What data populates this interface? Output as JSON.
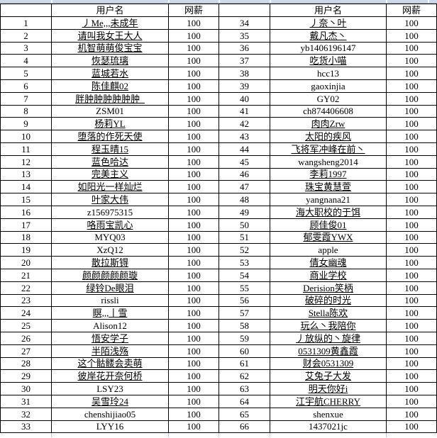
{
  "header": {
    "row_number_label": "",
    "username_label": "用户名",
    "salary_label": "网薪"
  },
  "rows_left": [
    {
      "no": "1",
      "name": "丿Me,,,未成年",
      "salary": "100"
    },
    {
      "no": "2",
      "name": "请叫我女王大人",
      "salary": "100"
    },
    {
      "no": "3",
      "name": "机智萌萌俊宝宝",
      "salary": "100"
    },
    {
      "no": "4",
      "name": "恢瑟琉璃",
      "salary": "100"
    },
    {
      "no": "5",
      "name": "蓝城若水",
      "salary": "100"
    },
    {
      "no": "6",
      "name": "陈佳麒02",
      "salary": "100"
    },
    {
      "no": "7",
      "name": "胖肿肿肿肿肿肿_",
      "salary": "100"
    },
    {
      "no": "8",
      "name": "ZSM01",
      "salary": "100"
    },
    {
      "no": "9",
      "name": "杨莉YL",
      "salary": "100"
    },
    {
      "no": "10",
      "name": "堕落的作死天使",
      "salary": "100"
    },
    {
      "no": "11",
      "name": "程玉晴15",
      "salary": "100"
    },
    {
      "no": "12",
      "name": "蓝色哈达",
      "salary": "100"
    },
    {
      "no": "13",
      "name": "完美主义",
      "salary": "100"
    },
    {
      "no": "14",
      "name": "如阳光一样灿烂",
      "salary": "100"
    },
    {
      "no": "15",
      "name": "叶家大伟",
      "salary": "100"
    },
    {
      "no": "16",
      "name": "z156975315",
      "salary": "100"
    },
    {
      "no": "17",
      "name": "咯雨宝凯心",
      "salary": "100"
    },
    {
      "no": "18",
      "name": "MYQ03",
      "salary": "100"
    },
    {
      "no": "19",
      "name": "XzQ12",
      "salary": "100"
    },
    {
      "no": "20",
      "name": "散拉斯锝",
      "salary": "100"
    },
    {
      "no": "21",
      "name": "颜颜颜颜颜璇",
      "salary": "100"
    },
    {
      "no": "22",
      "name": "绿铃De眼泪",
      "salary": "100"
    },
    {
      "no": "23",
      "name": "rissli",
      "salary": "100"
    },
    {
      "no": "24",
      "name": "瞑,,,丨雪",
      "salary": "100"
    },
    {
      "no": "25",
      "name": "Alison12",
      "salary": "100"
    },
    {
      "no": "26",
      "name": "悟安学子",
      "salary": "100"
    },
    {
      "no": "27",
      "name": "半陌浅殇",
      "salary": "100"
    },
    {
      "no": "28",
      "name": "这个骷髅会卖萌",
      "salary": "100"
    },
    {
      "no": "29",
      "name": "彼岸花开奈何桥",
      "salary": "100"
    },
    {
      "no": "30",
      "name": "LSY23",
      "salary": "100"
    },
    {
      "no": "31",
      "name": "吴雪玲24",
      "salary": "100"
    },
    {
      "no": "32",
      "name": "chenshijiao05",
      "salary": "100"
    },
    {
      "no": "33",
      "name": "LYY16",
      "salary": "100"
    }
  ],
  "rows_right": [
    {
      "no": "34",
      "name": "丿奈丶叶",
      "salary": "100"
    },
    {
      "no": "35",
      "name": "戴凡杰丶",
      "salary": "100"
    },
    {
      "no": "36",
      "name": "yb1406196147",
      "salary": "100"
    },
    {
      "no": "37",
      "name": "吃货小喵",
      "salary": "100"
    },
    {
      "no": "38",
      "name": "hcc13",
      "salary": "100"
    },
    {
      "no": "39",
      "name": "gaoxinjia",
      "salary": "100"
    },
    {
      "no": "40",
      "name": "GY02",
      "salary": "100"
    },
    {
      "no": "41",
      "name": "ch874406608",
      "salary": "100"
    },
    {
      "no": "42",
      "name": "肉肉Zrw",
      "salary": "100"
    },
    {
      "no": "43",
      "name": "太阳的疾风",
      "salary": "100"
    },
    {
      "no": "44",
      "name": "飞将军冲峰在前丶",
      "salary": "100"
    },
    {
      "no": "45",
      "name": "wangsheng2014",
      "salary": "100"
    },
    {
      "no": "46",
      "name": "李莉1997",
      "salary": "100"
    },
    {
      "no": "47",
      "name": "珠宝黄慧萱",
      "salary": "100"
    },
    {
      "no": "48",
      "name": "yangnana21",
      "salary": "100"
    },
    {
      "no": "49",
      "name": "海大职校的于饵",
      "salary": "100"
    },
    {
      "no": "50",
      "name": "顾佳俊01",
      "salary": "100"
    },
    {
      "no": "51",
      "name": "郁雯霞YWX",
      "salary": "100"
    },
    {
      "no": "52",
      "name": "apple",
      "salary": "100"
    },
    {
      "no": "53",
      "name": "倩女幽魂",
      "salary": "100"
    },
    {
      "no": "54",
      "name": "商业学校",
      "salary": "100"
    },
    {
      "no": "55",
      "name": "Derision笑柄",
      "salary": "100"
    },
    {
      "no": "56",
      "name": "破碎的时光",
      "salary": "100"
    },
    {
      "no": "57",
      "name": "Stella陈欢",
      "salary": "100"
    },
    {
      "no": "58",
      "name": "玩么丶我陪你",
      "salary": "100"
    },
    {
      "no": "59",
      "name": "丿放纵的丶旋律",
      "salary": "100"
    },
    {
      "no": "60",
      "name": "0531309黄鑫霞",
      "salary": "100"
    },
    {
      "no": "61",
      "name": "财会0531309",
      "salary": "100"
    },
    {
      "no": "62",
      "name": "艾兔子大发",
      "salary": "100"
    },
    {
      "no": "63",
      "name": "明天你好i",
      "salary": "100"
    },
    {
      "no": "64",
      "name": "江宇航CHERRY",
      "salary": "100"
    },
    {
      "no": "65",
      "name": "shenxue",
      "salary": "100"
    },
    {
      "no": "66",
      "name": "1437021jc",
      "salary": "100"
    }
  ],
  "colors": {
    "grid": "#000000",
    "text": "#000000",
    "background": "#ffffff",
    "top_band": "#ccd9ea",
    "top_band_edge": "#a3b6cf",
    "bottom_gridline": "#b9c9df"
  }
}
